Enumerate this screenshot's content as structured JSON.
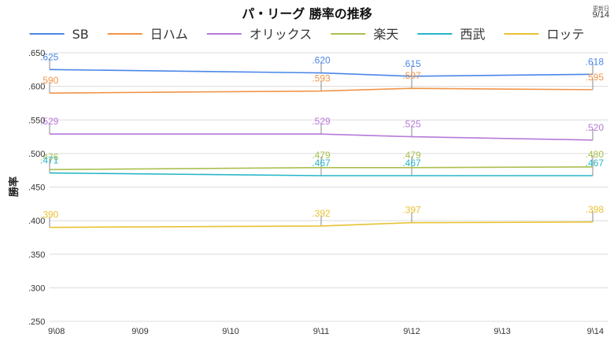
{
  "header": {
    "title": "パ・リーグ 勝率の推移",
    "updated_label": "更新日",
    "updated_date": "9/14"
  },
  "chart_data": {
    "type": "line",
    "title": "パ・リーグ 勝率の推移",
    "ylabel": "勝率",
    "xlabel": "",
    "x": [
      "9\\08",
      "9\\09",
      "9\\10",
      "9\\11",
      "9\\12",
      "9\\13",
      "9\\14"
    ],
    "ylim": [
      0.25,
      0.65
    ],
    "yticks": [
      ".650",
      ".600",
      ".550",
      ".500",
      ".450",
      ".400",
      ".350",
      ".300",
      ".250"
    ],
    "grid": true,
    "legend_position": "top",
    "labeled_x": [
      "9\\08",
      "9\\11",
      "9\\12",
      "9\\14"
    ],
    "series": [
      {
        "name": "SB",
        "color": "#4a86e8",
        "points": [
          [
            "9\\08",
            0.625
          ],
          [
            "9\\11",
            0.62
          ],
          [
            "9\\12",
            0.615
          ],
          [
            "9\\14",
            0.618
          ]
        ],
        "labels": [
          ".625",
          ".620",
          ".615",
          ".618"
        ]
      },
      {
        "name": "日ハム",
        "color": "#f0954a",
        "points": [
          [
            "9\\08",
            0.59
          ],
          [
            "9\\11",
            0.593
          ],
          [
            "9\\12",
            0.597
          ],
          [
            "9\\14",
            0.595
          ]
        ],
        "labels": [
          ".590",
          ".593",
          ".597",
          ".595"
        ]
      },
      {
        "name": "オリックス",
        "color": "#b57ad8",
        "points": [
          [
            "9\\08",
            0.529
          ],
          [
            "9\\11",
            0.529
          ],
          [
            "9\\12",
            0.525
          ],
          [
            "9\\14",
            0.52
          ]
        ],
        "labels": [
          ".529",
          ".529",
          ".525",
          ".520"
        ]
      },
      {
        "name": "楽天",
        "color": "#a9c04f",
        "points": [
          [
            "9\\08",
            0.476
          ],
          [
            "9\\11",
            0.479
          ],
          [
            "9\\12",
            0.479
          ],
          [
            "9\\14",
            0.48
          ]
        ],
        "labels": [
          ".476",
          ".479",
          ".479",
          ".480"
        ]
      },
      {
        "name": "西武",
        "color": "#26b5c9",
        "points": [
          [
            "9\\08",
            0.471
          ],
          [
            "9\\11",
            0.467
          ],
          [
            "9\\12",
            0.467
          ],
          [
            "9\\14",
            0.467
          ]
        ],
        "labels": [
          ".471",
          ".467",
          ".467",
          ".467"
        ]
      },
      {
        "name": "ロッテ",
        "color": "#e8c233",
        "points": [
          [
            "9\\08",
            0.39
          ],
          [
            "9\\11",
            0.392
          ],
          [
            "9\\12",
            0.397
          ],
          [
            "9\\14",
            0.398
          ]
        ],
        "labels": [
          ".390",
          ".392",
          ".397",
          ".398"
        ]
      }
    ]
  }
}
